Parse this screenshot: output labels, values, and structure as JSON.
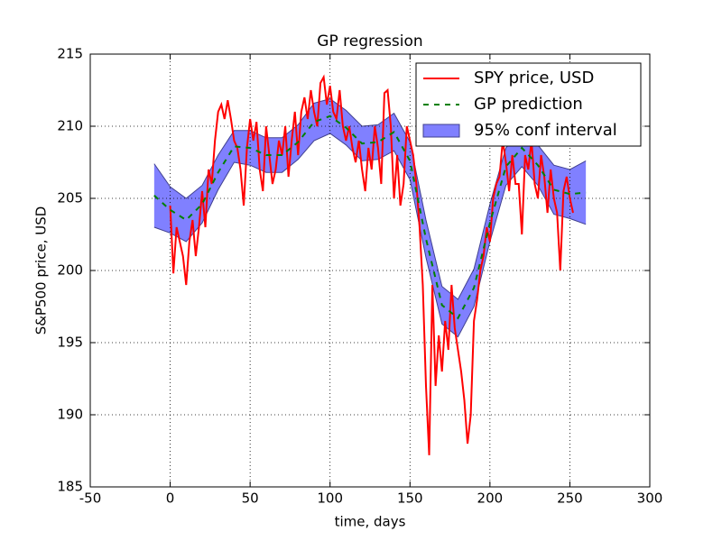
{
  "chart_data": {
    "type": "line",
    "title": "GP regression",
    "x_label": "time, days",
    "y_label": "S&P500 price, USD",
    "xlim": [
      -50,
      300
    ],
    "ylim": [
      185,
      215
    ],
    "xticks": [
      -50,
      0,
      50,
      100,
      150,
      200,
      250,
      300
    ],
    "yticks": [
      185,
      190,
      195,
      200,
      205,
      210,
      215
    ],
    "grid": true,
    "legend": "upper right",
    "band": {
      "name": "95% conf interval",
      "color": "#8080ff",
      "x": [
        -10,
        0,
        10,
        20,
        30,
        40,
        50,
        60,
        70,
        80,
        90,
        100,
        110,
        120,
        130,
        140,
        150,
        160,
        170,
        180,
        190,
        200,
        210,
        220,
        230,
        240,
        250,
        260
      ],
      "upper": [
        207.4,
        205.8,
        205.0,
        205.9,
        208.0,
        209.7,
        209.7,
        209.2,
        209.2,
        210.1,
        211.6,
        211.9,
        211.1,
        210.0,
        210.1,
        210.9,
        208.9,
        203.5,
        198.9,
        198.0,
        200.1,
        204.6,
        208.5,
        209.8,
        208.7,
        207.3,
        207.0,
        207.6
      ],
      "lower": [
        203.0,
        202.6,
        202.0,
        203.3,
        205.6,
        207.5,
        207.3,
        206.8,
        206.8,
        207.7,
        209.0,
        209.5,
        208.7,
        207.6,
        207.7,
        208.3,
        206.3,
        200.9,
        196.3,
        195.4,
        197.5,
        202.0,
        205.9,
        207.2,
        205.9,
        203.9,
        203.6,
        203.2
      ]
    },
    "series": [
      {
        "name": "SPY price, USD",
        "color": "#ff0000",
        "style": "solid",
        "x": [
          0,
          2,
          4,
          6,
          8,
          10,
          12,
          14,
          16,
          18,
          20,
          22,
          24,
          26,
          28,
          30,
          32,
          34,
          36,
          38,
          40,
          42,
          44,
          46,
          48,
          50,
          52,
          54,
          56,
          58,
          60,
          62,
          64,
          66,
          68,
          70,
          72,
          74,
          76,
          78,
          80,
          82,
          84,
          86,
          88,
          90,
          92,
          94,
          96,
          98,
          100,
          102,
          104,
          106,
          108,
          110,
          112,
          114,
          116,
          118,
          120,
          122,
          124,
          126,
          128,
          130,
          132,
          134,
          136,
          138,
          140,
          142,
          144,
          146,
          148,
          150,
          152,
          154,
          156,
          158,
          160,
          162,
          164,
          166,
          168,
          170,
          172,
          174,
          176,
          178,
          180,
          182,
          184,
          186,
          188,
          190,
          192,
          194,
          196,
          198,
          200,
          202,
          204,
          206,
          208,
          210,
          212,
          214,
          216,
          218,
          220,
          222,
          224,
          226,
          228,
          230,
          232,
          234,
          236,
          238,
          240,
          242,
          244,
          246,
          248,
          250,
          252
        ],
        "values": [
          204.5,
          199.8,
          203,
          202,
          201,
          199,
          202,
          203.5,
          201,
          203,
          205.5,
          203,
          207,
          206,
          209,
          211,
          211.5,
          210.5,
          211.8,
          210.5,
          209,
          208.5,
          207,
          204.5,
          208.5,
          210.5,
          209,
          210.3,
          207,
          205.5,
          210,
          208,
          206,
          207,
          209,
          208,
          210,
          206.5,
          209,
          211,
          208,
          211,
          212,
          210.5,
          212.5,
          211,
          210,
          213,
          213.4,
          211.5,
          212.8,
          211,
          210.5,
          212.5,
          210,
          209,
          210,
          208.5,
          207.5,
          209,
          207,
          205.5,
          208.5,
          207,
          210,
          208.5,
          206,
          212.3,
          212.5,
          210,
          205,
          208,
          204.5,
          206,
          210,
          209,
          208,
          206,
          203,
          199,
          192,
          187.2,
          199,
          192,
          195.5,
          193,
          196.5,
          194.5,
          199,
          196,
          194.5,
          193,
          191,
          188,
          190,
          196.5,
          198,
          200,
          201,
          203,
          202,
          205,
          206,
          206.5,
          209,
          207.5,
          205.5,
          208,
          206,
          206,
          202.5,
          208,
          207,
          209,
          206,
          205,
          208,
          206.5,
          204,
          207,
          205,
          204,
          200,
          205.5,
          206.5,
          205,
          204
        ]
      },
      {
        "name": "GP prediction",
        "color": "#008000",
        "style": "dashed",
        "x": [
          -10,
          0,
          10,
          20,
          30,
          40,
          50,
          60,
          70,
          80,
          90,
          100,
          110,
          120,
          130,
          140,
          150,
          160,
          170,
          180,
          190,
          200,
          210,
          220,
          230,
          240,
          250,
          260
        ],
        "values": [
          205.2,
          204.2,
          203.5,
          204.6,
          206.8,
          208.6,
          208.5,
          208.0,
          208.0,
          208.9,
          210.3,
          210.7,
          209.9,
          208.8,
          208.9,
          209.6,
          207.6,
          202.2,
          197.6,
          196.7,
          198.8,
          203.3,
          207.2,
          208.5,
          207.3,
          205.6,
          205.3,
          205.4
        ]
      }
    ]
  }
}
